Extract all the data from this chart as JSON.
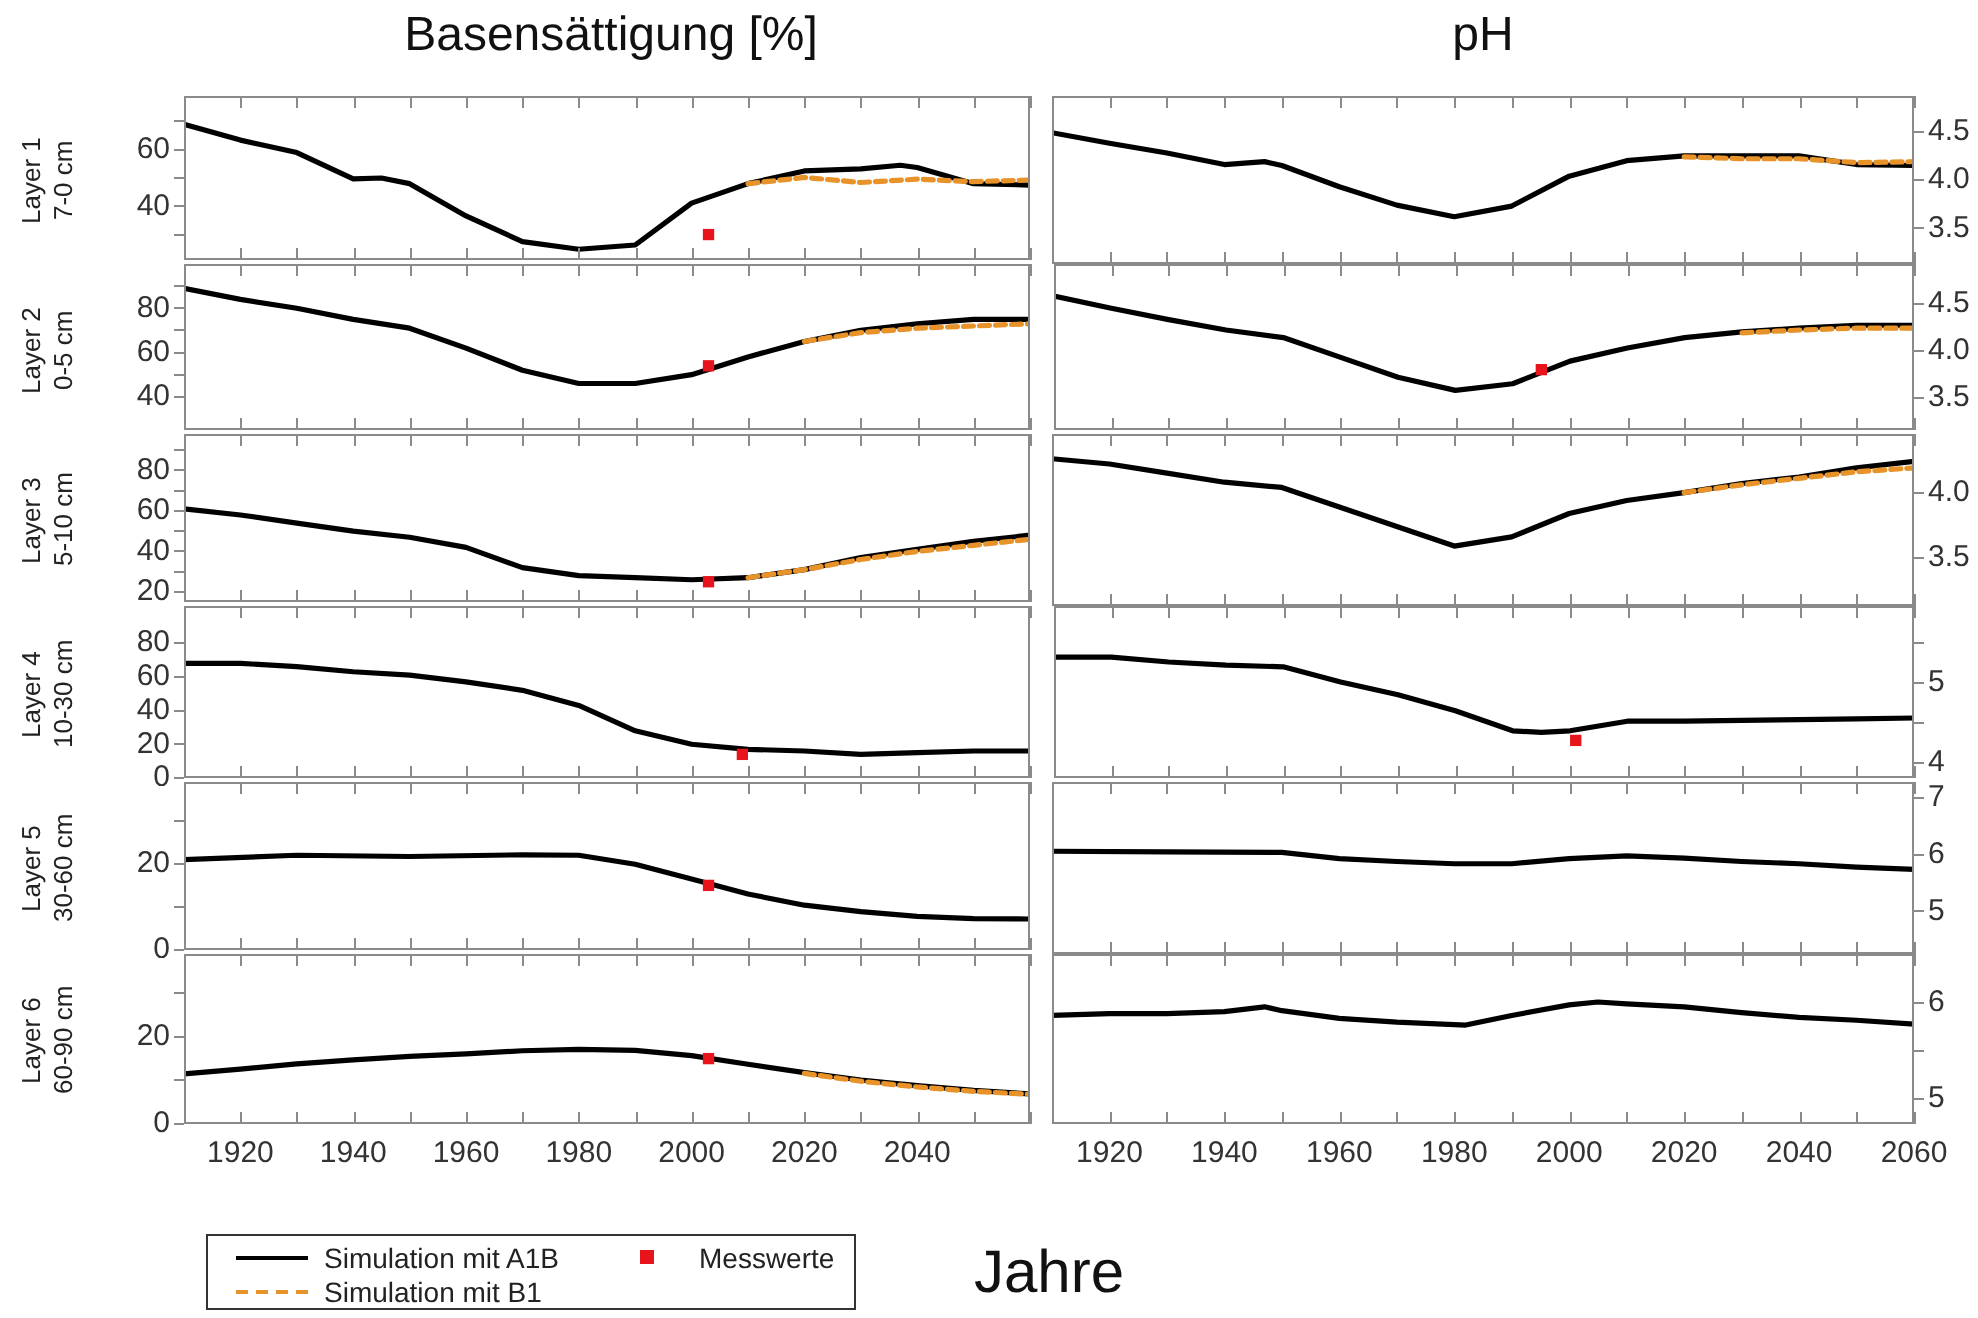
{
  "chart_data": [
    {
      "type": "line",
      "title": "Basensättigung [%]",
      "ylabel": "Layer 1 7-0 cm",
      "xlim": [
        1910,
        2060
      ],
      "ylim": [
        21,
        79
      ],
      "tick_labels": "y",
      "xticks": [
        {
          "value": 1910,
          "label": null
        },
        1920,
        {
          "value": 1930,
          "label": null
        },
        1940,
        {
          "value": 1950,
          "label": null
        },
        1960,
        {
          "value": 1970,
          "label": null
        },
        1980,
        {
          "value": 1990,
          "label": null
        },
        2000,
        {
          "value": 2010,
          "label": null
        },
        2020,
        {
          "value": 2030,
          "label": null
        },
        2040,
        {
          "value": 2050,
          "label": null
        },
        {
          "value": 2060,
          "label": null
        }
      ],
      "yticks": [
        {
          "value": 30,
          "label": null
        },
        40,
        {
          "value": 50,
          "label": null
        },
        60,
        {
          "value": 70,
          "label": null
        }
      ],
      "series": [
        {
          "color": "#000000",
          "line_style": "solid",
          "marker": "none",
          "x": [
            1910,
            1920,
            1930,
            1940,
            1945,
            1950,
            1960,
            1970,
            1980,
            1990,
            2000,
            2010,
            2020,
            2030,
            2037,
            2040,
            2050,
            2060
          ],
          "values": [
            69,
            63.4,
            59,
            49.7,
            50,
            48,
            36.6,
            27.5,
            24.8,
            26.3,
            41.1,
            48,
            52.5,
            53.2,
            54.5,
            53.7,
            48,
            47.5
          ]
        },
        {
          "color": "#e8922a",
          "line_style": "dashed",
          "marker": "none",
          "x": [
            2010,
            2020,
            2030,
            2040,
            2050,
            2060
          ],
          "values": [
            48,
            50.2,
            48.4,
            49.6,
            48.7,
            49.3
          ]
        },
        {
          "type": "scatter",
          "color": "#e8141c",
          "marker": "square",
          "x": [
            2003
          ],
          "values": [
            30
          ]
        }
      ]
    },
    {
      "type": "line",
      "title": "pH",
      "xlim": [
        1910,
        2060
      ],
      "ylim": [
        3.13,
        4.87
      ],
      "tick_labels": "y",
      "xticks": [
        {
          "value": 1910,
          "label": null
        },
        1920,
        {
          "value": 1930,
          "label": null
        },
        1940,
        {
          "value": 1950,
          "label": null
        },
        1960,
        {
          "value": 1970,
          "label": null
        },
        1980,
        {
          "value": 1990,
          "label": null
        },
        2000,
        {
          "value": 2010,
          "label": null
        },
        2020,
        {
          "value": 2030,
          "label": null
        },
        2040,
        {
          "value": 2050,
          "label": null
        },
        2060
      ],
      "yticks": [
        {
          "value": 3.5,
          "label": "3.5"
        },
        {
          "value": 4,
          "label": "4.0"
        },
        {
          "value": 4.5,
          "label": "4.5"
        }
      ],
      "series": [
        {
          "color": "#000000",
          "line_style": "solid",
          "marker": "none",
          "x": [
            1910,
            1920,
            1930,
            1940,
            1947,
            1950,
            1960,
            1970,
            1980,
            1990,
            2000,
            2010,
            2020,
            2030,
            2040,
            2050,
            2060
          ],
          "values": [
            4.49,
            4.38,
            4.28,
            4.16,
            4.19,
            4.15,
            3.93,
            3.74,
            3.62,
            3.73,
            4.04,
            4.2,
            4.25,
            4.25,
            4.25,
            4.16,
            4.15
          ]
        },
        {
          "color": "#e8922a",
          "line_style": "dashed",
          "marker": "none",
          "x": [
            2020,
            2030,
            2040,
            2050,
            2060
          ],
          "values": [
            4.24,
            4.22,
            4.22,
            4.18,
            4.19
          ]
        }
      ]
    },
    {
      "type": "line",
      "ylabel": "Layer 2 0-5 cm",
      "xlim": [
        1910,
        2060
      ],
      "ylim": [
        25,
        100
      ],
      "tick_labels": "y",
      "xticks": [
        {
          "value": 1910,
          "label": null
        },
        1920,
        {
          "value": 1930,
          "label": null
        },
        1940,
        {
          "value": 1950,
          "label": null
        },
        1960,
        {
          "value": 1970,
          "label": null
        },
        1980,
        {
          "value": 1990,
          "label": null
        },
        2000,
        {
          "value": 2010,
          "label": null
        },
        2020,
        {
          "value": 2030,
          "label": null
        },
        2040,
        {
          "value": 2050,
          "label": null
        },
        {
          "value": 2060,
          "label": null
        }
      ],
      "yticks": [
        40,
        {
          "value": 50,
          "label": null
        },
        60,
        {
          "value": 70,
          "label": null
        },
        80,
        {
          "value": 90,
          "label": null
        }
      ],
      "series": [
        {
          "color": "#000000",
          "line_style": "solid",
          "marker": "none",
          "x": [
            1910,
            1920,
            1930,
            1940,
            1950,
            1960,
            1970,
            1980,
            1990,
            2000,
            2010,
            2020,
            2030,
            2040,
            2050,
            2060
          ],
          "values": [
            89,
            84,
            80,
            75,
            71,
            62,
            52,
            46,
            46,
            50,
            58,
            65,
            70,
            73,
            75,
            75
          ]
        },
        {
          "color": "#e8922a",
          "line_style": "dashed",
          "marker": "none",
          "x": [
            2020,
            2030,
            2040,
            2050,
            2060
          ],
          "values": [
            65,
            69,
            71,
            72,
            73
          ]
        },
        {
          "type": "scatter",
          "color": "#e8141c",
          "marker": "square",
          "x": [
            2003
          ],
          "values": [
            54
          ]
        }
      ]
    },
    {
      "type": "line",
      "xlim": [
        1910,
        2060
      ],
      "ylim": [
        3.16,
        4.92
      ],
      "tick_labels": "y",
      "xticks": [
        {
          "value": 1910,
          "label": null
        },
        1920,
        {
          "value": 1930,
          "label": null
        },
        1940,
        {
          "value": 1950,
          "label": null
        },
        1960,
        {
          "value": 1970,
          "label": null
        },
        1980,
        {
          "value": 1990,
          "label": null
        },
        2000,
        {
          "value": 2010,
          "label": null
        },
        2020,
        {
          "value": 2030,
          "label": null
        },
        2040,
        {
          "value": 2050,
          "label": null
        },
        2060
      ],
      "yticks": [
        {
          "value": 3.5,
          "label": "3.5"
        },
        {
          "value": 4,
          "label": "4.0"
        },
        {
          "value": 4.5,
          "label": "4.5"
        }
      ],
      "series": [
        {
          "color": "#000000",
          "line_style": "solid",
          "marker": "none",
          "x": [
            1910,
            1920,
            1930,
            1940,
            1950,
            1960,
            1970,
            1980,
            1990,
            2000,
            2010,
            2020,
            2030,
            2040,
            2050,
            2060
          ],
          "values": [
            4.58,
            4.45,
            4.33,
            4.22,
            4.14,
            3.93,
            3.72,
            3.58,
            3.65,
            3.89,
            4.03,
            4.14,
            4.2,
            4.24,
            4.27,
            4.27
          ]
        },
        {
          "color": "#e8922a",
          "line_style": "dashed",
          "marker": "none",
          "x": [
            2030,
            2040,
            2050,
            2060
          ],
          "values": [
            4.19,
            4.22,
            4.24,
            4.24
          ]
        },
        {
          "type": "scatter",
          "color": "#e8141c",
          "marker": "square",
          "x": [
            1995
          ],
          "values": [
            3.8
          ]
        }
      ]
    },
    {
      "type": "line",
      "ylabel": "Layer 3 5-10 cm",
      "xlim": [
        1910,
        2060
      ],
      "ylim": [
        15,
        98
      ],
      "tick_labels": "y",
      "xticks": [
        {
          "value": 1910,
          "label": null
        },
        1920,
        {
          "value": 1930,
          "label": null
        },
        1940,
        {
          "value": 1950,
          "label": null
        },
        1960,
        {
          "value": 1970,
          "label": null
        },
        1980,
        {
          "value": 1990,
          "label": null
        },
        2000,
        {
          "value": 2010,
          "label": null
        },
        2020,
        {
          "value": 2030,
          "label": null
        },
        2040,
        {
          "value": 2050,
          "label": null
        },
        {
          "value": 2060,
          "label": null
        }
      ],
      "yticks": [
        20,
        {
          "value": 30,
          "label": null
        },
        40,
        {
          "value": 50,
          "label": null
        },
        60,
        {
          "value": 70,
          "label": null
        },
        80,
        {
          "value": 90,
          "label": null
        }
      ],
      "series": [
        {
          "color": "#000000",
          "line_style": "solid",
          "marker": "none",
          "x": [
            1910,
            1920,
            1930,
            1940,
            1950,
            1960,
            1970,
            1980,
            1990,
            2000,
            2010,
            2020,
            2030,
            2040,
            2050,
            2060
          ],
          "values": [
            61,
            58,
            54,
            50,
            47,
            42,
            32,
            28,
            27,
            26,
            27,
            31,
            37,
            41,
            45,
            48
          ]
        },
        {
          "color": "#e8922a",
          "line_style": "dashed",
          "marker": "none",
          "x": [
            2010,
            2020,
            2030,
            2040,
            2050,
            2060
          ],
          "values": [
            27,
            31,
            36,
            40,
            43,
            46
          ]
        },
        {
          "type": "scatter",
          "color": "#e8141c",
          "marker": "square",
          "x": [
            2003
          ],
          "values": [
            25
          ]
        }
      ]
    },
    {
      "type": "line",
      "xlim": [
        1910,
        2060
      ],
      "ylim": [
        3.13,
        4.45
      ],
      "tick_labels": "y",
      "xticks": [
        {
          "value": 1910,
          "label": null
        },
        1920,
        {
          "value": 1930,
          "label": null
        },
        1940,
        {
          "value": 1950,
          "label": null
        },
        1960,
        {
          "value": 1970,
          "label": null
        },
        1980,
        {
          "value": 1990,
          "label": null
        },
        2000,
        {
          "value": 2010,
          "label": null
        },
        2020,
        {
          "value": 2030,
          "label": null
        },
        2040,
        {
          "value": 2050,
          "label": null
        },
        2060
      ],
      "yticks": [
        {
          "value": 3.5,
          "label": "3.5"
        },
        {
          "value": 4,
          "label": "4.0"
        }
      ],
      "series": [
        {
          "color": "#000000",
          "line_style": "solid",
          "marker": "none",
          "x": [
            1910,
            1920,
            1930,
            1940,
            1950,
            1960,
            1970,
            1980,
            1990,
            2000,
            2010,
            2020,
            2030,
            2040,
            2050,
            2060
          ],
          "values": [
            4.26,
            4.22,
            4.15,
            4.08,
            4.04,
            3.89,
            3.74,
            3.59,
            3.66,
            3.84,
            3.94,
            4.0,
            4.07,
            4.12,
            4.19,
            4.24
          ]
        },
        {
          "color": "#e8922a",
          "line_style": "dashed",
          "marker": "none",
          "x": [
            2020,
            2030,
            2040,
            2050,
            2060
          ],
          "values": [
            4.0,
            4.06,
            4.11,
            4.16,
            4.19
          ]
        }
      ]
    },
    {
      "type": "line",
      "ylabel": "Layer 4 10-30 cm",
      "xlim": [
        1910,
        2060
      ],
      "ylim": [
        0,
        102
      ],
      "tick_labels": "y",
      "xticks": [
        {
          "value": 1910,
          "label": null
        },
        1920,
        {
          "value": 1930,
          "label": null
        },
        1940,
        {
          "value": 1950,
          "label": null
        },
        1960,
        {
          "value": 1970,
          "label": null
        },
        1980,
        {
          "value": 1990,
          "label": null
        },
        2000,
        {
          "value": 2010,
          "label": null
        },
        2020,
        {
          "value": 2030,
          "label": null
        },
        2040,
        {
          "value": 2050,
          "label": null
        },
        {
          "value": 2060,
          "label": null
        }
      ],
      "yticks": [
        0,
        20,
        40,
        60,
        80
      ],
      "series": [
        {
          "color": "#000000",
          "line_style": "solid",
          "marker": "none",
          "x": [
            1910,
            1920,
            1930,
            1940,
            1950,
            1960,
            1970,
            1980,
            1990,
            2000,
            2010,
            2020,
            2030,
            2040,
            2050,
            2060
          ],
          "values": [
            68,
            68,
            66,
            63,
            61,
            57,
            52,
            43,
            28,
            20,
            17,
            16,
            14,
            15,
            16,
            16
          ]
        },
        {
          "type": "scatter",
          "color": "#e8141c",
          "marker": "square",
          "x": [
            2009
          ],
          "values": [
            14
          ]
        }
      ]
    },
    {
      "type": "line",
      "xlim": [
        1910,
        2060
      ],
      "ylim": [
        3.81,
        5.96
      ],
      "tick_labels": "y",
      "xticks": [
        {
          "value": 1910,
          "label": null
        },
        1920,
        {
          "value": 1930,
          "label": null
        },
        1940,
        {
          "value": 1950,
          "label": null
        },
        1960,
        {
          "value": 1970,
          "label": null
        },
        1980,
        {
          "value": 1990,
          "label": null
        },
        2000,
        {
          "value": 2010,
          "label": null
        },
        2020,
        {
          "value": 2030,
          "label": null
        },
        2040,
        {
          "value": 2050,
          "label": null
        },
        2060
      ],
      "yticks": [
        4,
        {
          "value": 4.5,
          "label": null
        },
        5,
        {
          "value": 5.5,
          "label": null
        }
      ],
      "series": [
        {
          "color": "#000000",
          "line_style": "solid",
          "marker": "none",
          "x": [
            1910,
            1920,
            1930,
            1940,
            1950,
            1960,
            1970,
            1980,
            1990,
            1995,
            2000,
            2010,
            2020,
            2030,
            2040,
            2050,
            2060
          ],
          "values": [
            5.32,
            5.32,
            5.26,
            5.22,
            5.2,
            5.01,
            4.85,
            4.65,
            4.4,
            4.38,
            4.4,
            4.52,
            4.52,
            4.53,
            4.54,
            4.55,
            4.56
          ]
        },
        {
          "type": "scatter",
          "color": "#e8141c",
          "marker": "square",
          "x": [
            2001
          ],
          "values": [
            4.28
          ]
        }
      ]
    },
    {
      "type": "line",
      "ylabel": "Layer 5 30-60 cm",
      "xlim": [
        1910,
        2060
      ],
      "ylim": [
        0,
        39
      ],
      "tick_labels": "y",
      "xticks": [
        {
          "value": 1910,
          "label": null
        },
        1920,
        {
          "value": 1930,
          "label": null
        },
        1940,
        {
          "value": 1950,
          "label": null
        },
        1960,
        {
          "value": 1970,
          "label": null
        },
        1980,
        {
          "value": 1990,
          "label": null
        },
        2000,
        {
          "value": 2010,
          "label": null
        },
        2020,
        {
          "value": 2030,
          "label": null
        },
        2040,
        {
          "value": 2050,
          "label": null
        },
        {
          "value": 2060,
          "label": null
        }
      ],
      "yticks": [
        0,
        {
          "value": 10,
          "label": null
        },
        20,
        {
          "value": 30,
          "label": null
        }
      ],
      "series": [
        {
          "color": "#000000",
          "line_style": "solid",
          "marker": "none",
          "x": [
            1910,
            1930,
            1950,
            1970,
            1980,
            1990,
            2000,
            2010,
            2020,
            2030,
            2040,
            2050,
            2060
          ],
          "values": [
            21,
            22,
            21.7,
            22.1,
            22,
            19.9,
            16.5,
            13,
            10.4,
            8.9,
            7.8,
            7.3,
            7.2
          ]
        },
        {
          "type": "scatter",
          "color": "#e8141c",
          "marker": "square",
          "x": [
            2003
          ],
          "values": [
            15
          ]
        }
      ]
    },
    {
      "type": "line",
      "xlim": [
        1910,
        2060
      ],
      "ylim": [
        4.25,
        7.28
      ],
      "tick_labels": "y",
      "xticks": [
        {
          "value": 1910,
          "label": null
        },
        1920,
        {
          "value": 1930,
          "label": null
        },
        1940,
        {
          "value": 1950,
          "label": null
        },
        1960,
        {
          "value": 1970,
          "label": null
        },
        1980,
        {
          "value": 1990,
          "label": null
        },
        2000,
        {
          "value": 2010,
          "label": null
        },
        2020,
        {
          "value": 2030,
          "label": null
        },
        2040,
        {
          "value": 2050,
          "label": null
        },
        2060
      ],
      "yticks": [
        5,
        6,
        7
      ],
      "series": [
        {
          "color": "#000000",
          "line_style": "solid",
          "marker": "none",
          "x": [
            1910,
            1930,
            1950,
            1960,
            1970,
            1980,
            1990,
            2000,
            2010,
            2020,
            2030,
            2040,
            2050,
            2060
          ],
          "values": [
            6.06,
            6.05,
            6.04,
            5.93,
            5.88,
            5.84,
            5.84,
            5.93,
            5.98,
            5.94,
            5.88,
            5.84,
            5.78,
            5.74
          ]
        }
      ]
    },
    {
      "type": "line",
      "ylabel": "Layer 6 60-90 cm",
      "xlabel": "Jahre",
      "legend": "bottom",
      "xlim": [
        1910,
        2060
      ],
      "ylim": [
        0,
        39
      ],
      "xticks": [
        {
          "value": 1910,
          "label": null
        },
        1920,
        {
          "value": 1930,
          "label": null
        },
        1940,
        {
          "value": 1950,
          "label": null
        },
        1960,
        {
          "value": 1970,
          "label": null
        },
        1980,
        {
          "value": 1990,
          "label": null
        },
        2000,
        {
          "value": 2010,
          "label": null
        },
        2020,
        {
          "value": 2030,
          "label": null
        },
        2040,
        {
          "value": 2050,
          "label": null
        },
        {
          "value": 2060,
          "label": null
        }
      ],
      "yticks": [
        0,
        {
          "value": 10,
          "label": null
        },
        20,
        {
          "value": 30,
          "label": null
        }
      ],
      "series": [
        {
          "name": "Simulation mit A1B",
          "color": "#000000",
          "line_style": "solid",
          "marker": "none",
          "x": [
            1910,
            1920,
            1930,
            1940,
            1950,
            1960,
            1970,
            1980,
            1990,
            2000,
            2010,
            2020,
            2030,
            2040,
            2050,
            2060
          ],
          "values": [
            11.5,
            12.6,
            13.8,
            14.7,
            15.5,
            16.1,
            16.8,
            17.1,
            16.9,
            15.7,
            13.7,
            11.8,
            10.1,
            8.8,
            7.7,
            6.9
          ]
        },
        {
          "name": "Simulation mit B1",
          "color": "#e8922a",
          "line_style": "dashed",
          "marker": "none",
          "x": [
            2020,
            2030,
            2040,
            2050,
            2060
          ],
          "values": [
            11.6,
            9.8,
            8.5,
            7.5,
            6.8
          ]
        },
        {
          "name": "Messwerte",
          "type": "scatter",
          "color": "#e8141c",
          "marker": "square",
          "x": [
            2003
          ],
          "values": [
            15
          ]
        }
      ]
    },
    {
      "type": "line",
      "xlim": [
        1910,
        2060
      ],
      "ylim": [
        4.74,
        6.51
      ],
      "xticks": [
        {
          "value": 1910,
          "label": null
        },
        1920,
        {
          "value": 1930,
          "label": null
        },
        1940,
        {
          "value": 1950,
          "label": null
        },
        1960,
        {
          "value": 1970,
          "label": null
        },
        1980,
        {
          "value": 1990,
          "label": null
        },
        2000,
        {
          "value": 2010,
          "label": null
        },
        2020,
        {
          "value": 2030,
          "label": null
        },
        2040,
        {
          "value": 2050,
          "label": null
        },
        2060
      ],
      "yticks": [
        5,
        {
          "value": 5.5,
          "label": null
        },
        6
      ],
      "series": [
        {
          "color": "#000000",
          "line_style": "solid",
          "marker": "none",
          "x": [
            1910,
            1920,
            1930,
            1940,
            1947,
            1950,
            1960,
            1970,
            1982,
            1990,
            2000,
            2005,
            2010,
            2020,
            2030,
            2040,
            2050,
            2060
          ],
          "values": [
            5.87,
            5.89,
            5.89,
            5.91,
            5.96,
            5.92,
            5.84,
            5.8,
            5.77,
            5.87,
            5.98,
            6.01,
            5.99,
            5.96,
            5.9,
            5.85,
            5.82,
            5.78
          ]
        }
      ]
    }
  ]
}
